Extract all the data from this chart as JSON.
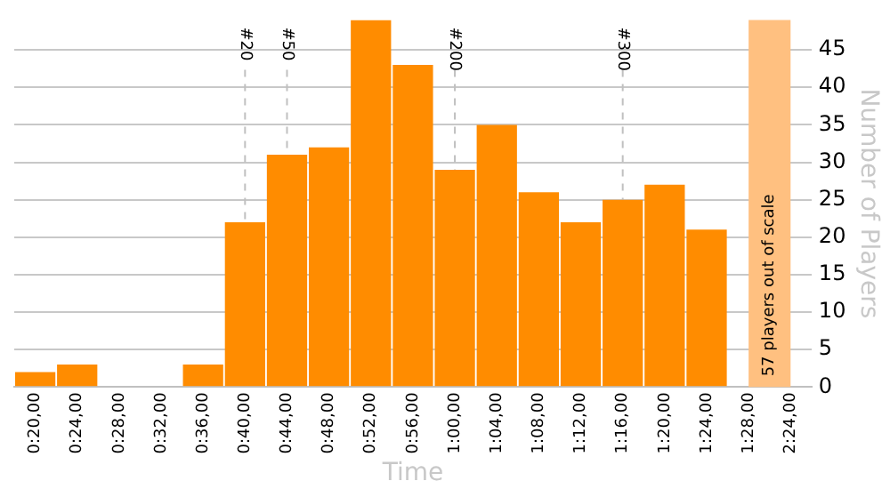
{
  "chart_data": {
    "type": "bar",
    "xlabel": "Time",
    "ylabel": "Number of Players",
    "categories": [
      "0:20,00",
      "0:24,00",
      "0:28,00",
      "0:32,00",
      "0:36,00",
      "0:40,00",
      "0:44,00",
      "0:48,00",
      "0:52,00",
      "0:56,00",
      "1:00,00",
      "1:04,00",
      "1:08,00",
      "1:12,00",
      "1:16,00",
      "1:20,00",
      "1:24,00",
      "1:28,00",
      "2:24,00"
    ],
    "values": [
      2,
      3,
      0,
      0,
      3,
      22,
      31,
      32,
      49,
      43,
      29,
      35,
      26,
      22,
      25,
      27,
      21,
      null,
      null
    ],
    "color": "#ff8c00",
    "ylim": [
      0,
      49
    ],
    "yticks": [
      0,
      5,
      10,
      15,
      20,
      25,
      30,
      35,
      40,
      45
    ],
    "grid": "y",
    "ref_lines": [
      {
        "axis": "x",
        "value": "0:40,00",
        "line_style": "dashed",
        "color": "#c0c0c0"
      },
      {
        "axis": "x",
        "value": "0:44,00",
        "line_style": "dashed",
        "color": "#c0c0c0"
      },
      {
        "axis": "x",
        "value": "1:00,00",
        "line_style": "dashed",
        "color": "#c0c0c0"
      },
      {
        "axis": "x",
        "value": "1:16,00",
        "line_style": "dashed",
        "color": "#c0c0c0"
      }
    ],
    "annotations": [
      "#20",
      "#50",
      "#200",
      "#300"
    ],
    "bands": [
      {
        "axis": "x",
        "from": "1:28,00",
        "to": "2:24,00",
        "label": "57 players out of scale",
        "color": "#ffc080"
      }
    ]
  }
}
